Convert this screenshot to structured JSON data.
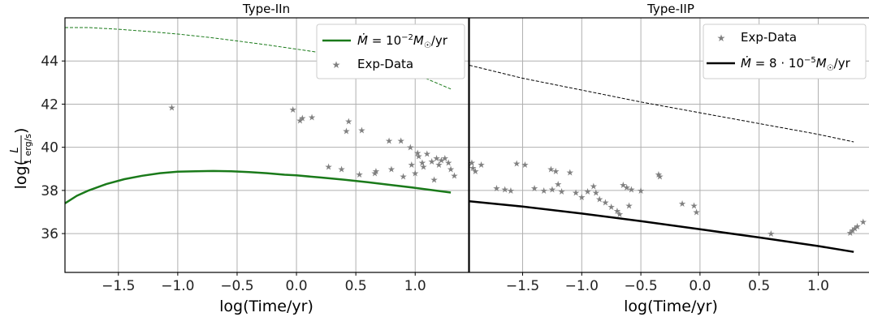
{
  "figure": {
    "ylabel_prefix": "log(",
    "ylabel_num": "L",
    "ylabel_den": "1 erg/s",
    "ylabel_suffix": ")"
  },
  "chart_data": [
    {
      "type": "line",
      "title": "Type-IIn",
      "xlabel": "log(Time/yr)",
      "ylabel": "log(L / 1 erg/s)",
      "xlim": [
        -1.95,
        1.45
      ],
      "ylim": [
        34.2,
        46.0
      ],
      "xticks": [
        -1.5,
        -1.0,
        -0.5,
        0.0,
        0.5,
        1.0
      ],
      "xtick_labels": [
        "−1.5",
        "−1.0",
        "−0.5",
        "0.0",
        "0.5",
        "1.0"
      ],
      "yticks": [
        36,
        38,
        40,
        42,
        44
      ],
      "ytick_labels": [
        "36",
        "38",
        "40",
        "42",
        "44"
      ],
      "grid": true,
      "legend_position": "upper right",
      "colors": {
        "model": "#1a7a1a",
        "data": "#808080"
      },
      "legend": [
        "Ṁ = 10⁻²M☉/yr",
        "Exp-Data"
      ],
      "series": [
        {
          "name": "Ṁ = 10⁻²M☉/yr",
          "style": "solid",
          "color": "#1a7a1a",
          "x": [
            -1.95,
            -1.85,
            -1.75,
            -1.6,
            -1.45,
            -1.3,
            -1.15,
            -1.0,
            -0.85,
            -0.7,
            -0.55,
            -0.4,
            -0.25,
            -0.1,
            0.0,
            0.2,
            0.4,
            0.6,
            0.8,
            1.0,
            1.3
          ],
          "y": [
            37.4,
            37.75,
            38.0,
            38.3,
            38.52,
            38.68,
            38.8,
            38.87,
            38.89,
            38.9,
            38.89,
            38.85,
            38.8,
            38.73,
            38.7,
            38.6,
            38.5,
            38.38,
            38.25,
            38.12,
            37.9
          ]
        },
        {
          "name": "",
          "style": "dashed",
          "color": "#1a7a1a",
          "x": [
            -1.95,
            -1.75,
            -1.5,
            -1.25,
            -1.0,
            -0.75,
            -0.5,
            -0.25,
            0.0,
            0.25,
            0.5,
            0.75,
            1.0,
            1.3
          ],
          "y": [
            45.55,
            45.55,
            45.47,
            45.37,
            45.25,
            45.1,
            44.93,
            44.75,
            44.55,
            44.35,
            44.1,
            43.8,
            43.4,
            42.7
          ]
        },
        {
          "name": "Exp-Data",
          "style": "markers",
          "color": "#808080",
          "x": [
            -1.05,
            -0.03,
            0.03,
            0.05,
            0.13,
            0.27,
            0.38,
            0.42,
            0.44,
            0.53,
            0.55,
            0.66,
            0.67,
            0.78,
            0.8,
            0.88,
            0.9,
            0.96,
            0.97,
            1.0,
            1.02,
            1.03,
            1.06,
            1.07,
            1.1,
            1.14,
            1.16,
            1.18,
            1.2,
            1.22,
            1.25,
            1.28,
            1.3,
            1.33
          ],
          "y": [
            41.85,
            41.75,
            41.25,
            41.35,
            41.4,
            39.1,
            39.0,
            40.75,
            41.2,
            38.75,
            40.8,
            38.8,
            38.9,
            40.3,
            39.0,
            40.3,
            38.65,
            40.0,
            39.2,
            38.8,
            39.75,
            39.6,
            39.3,
            39.1,
            39.7,
            39.35,
            38.5,
            39.5,
            39.2,
            39.4,
            39.5,
            39.3,
            39.0,
            38.7
          ]
        }
      ]
    },
    {
      "type": "line",
      "title": "Type-IIP",
      "xlabel": "log(Time/yr)",
      "xlim": [
        -1.95,
        1.45
      ],
      "ylim": [
        34.2,
        46.0
      ],
      "xticks": [
        -1.5,
        -1.0,
        -0.5,
        0.0,
        0.5,
        1.0
      ],
      "xtick_labels": [
        "−1.5",
        "−1.0",
        "−0.5",
        "0.0",
        "0.5",
        "1.0"
      ],
      "grid": true,
      "legend_position": "upper right",
      "colors": {
        "model": "#000000",
        "data": "#808080"
      },
      "legend": [
        "Exp-Data",
        "Ṁ = 8 · 10⁻⁵M☉/yr"
      ],
      "series": [
        {
          "name": "Ṁ = 8 · 10⁻⁵M☉/yr",
          "style": "solid",
          "color": "#000000",
          "x": [
            -1.95,
            -1.5,
            -1.0,
            -0.5,
            0.0,
            0.5,
            1.0,
            1.3
          ],
          "y": [
            37.5,
            37.25,
            36.93,
            36.58,
            36.2,
            35.82,
            35.42,
            35.15
          ]
        },
        {
          "name": "",
          "style": "dashed",
          "color": "#000000",
          "x": [
            -1.95,
            -1.5,
            -1.0,
            -0.5,
            0.0,
            0.5,
            1.0,
            1.3
          ],
          "y": [
            43.8,
            43.2,
            42.65,
            42.1,
            41.6,
            41.1,
            40.6,
            40.25
          ]
        },
        {
          "name": "Exp-Data",
          "style": "markers",
          "color": "#808080",
          "x": [
            -1.93,
            -1.92,
            -1.9,
            -1.85,
            -1.72,
            -1.65,
            -1.6,
            -1.55,
            -1.48,
            -1.4,
            -1.32,
            -1.26,
            -1.25,
            -1.22,
            -1.2,
            -1.17,
            -1.1,
            -1.05,
            -1.0,
            -0.95,
            -0.9,
            -0.88,
            -0.85,
            -0.8,
            -0.75,
            -0.7,
            -0.68,
            -0.65,
            -0.62,
            -0.6,
            -0.58,
            -0.5,
            -0.35,
            -0.34,
            -0.15,
            -0.05,
            -0.03,
            0.6,
            1.27,
            1.29,
            1.31,
            1.33,
            1.38
          ],
          "y": [
            39.3,
            39.05,
            38.9,
            39.2,
            38.1,
            38.05,
            38.0,
            39.25,
            39.2,
            38.1,
            38.0,
            39.0,
            38.05,
            38.9,
            38.3,
            37.95,
            38.85,
            37.9,
            37.7,
            37.95,
            38.2,
            37.9,
            37.6,
            37.45,
            37.25,
            37.05,
            36.9,
            38.25,
            38.15,
            37.3,
            38.05,
            38.0,
            38.75,
            38.65,
            37.4,
            37.3,
            37.0,
            36.0,
            36.05,
            36.15,
            36.25,
            36.35,
            36.55
          ]
        }
      ]
    }
  ]
}
